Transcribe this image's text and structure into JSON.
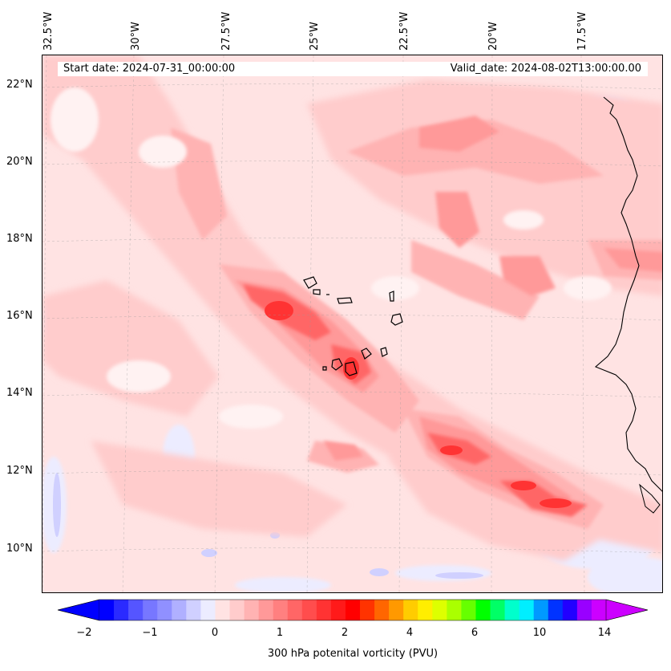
{
  "map": {
    "title_left": "Start date: 2024-07-31_00:00:00",
    "title_right": "Valid_date: 2024-08-02T13:00:00.00",
    "lon_labels": [
      "32.5°W",
      "30°W",
      "27.5°W",
      "25°W",
      "22.5°W",
      "20°W",
      "17.5°W"
    ],
    "lat_labels": [
      "22°N",
      "20°N",
      "18°N",
      "16°N",
      "14°N",
      "12°N",
      "10°N"
    ],
    "variable": "300 hPa potential vorticity",
    "units": "PVU"
  },
  "colorbar": {
    "label": "300 hPa potenital vorticity (PVU)",
    "tick_labels": [
      "−2",
      "−1",
      "0",
      "1",
      "2",
      "4",
      "6",
      "10",
      "14"
    ],
    "colors": [
      "#0000ff",
      "#2a2aff",
      "#5555ff",
      "#7777ff",
      "#9090ff",
      "#b0b0ff",
      "#d0d0ff",
      "#ececff",
      "#ffe3e3",
      "#ffcccc",
      "#ffb3b3",
      "#ff9999",
      "#ff8080",
      "#ff6666",
      "#ff4d4d",
      "#ff3333",
      "#ff1a1a",
      "#ff0000",
      "#ff3300",
      "#ff6600",
      "#ff9900",
      "#ffcc00",
      "#ffee00",
      "#ddff00",
      "#aaff00",
      "#66ff00",
      "#00ff00",
      "#00ff66",
      "#00ffcc",
      "#00eeff",
      "#0099ff",
      "#0033ff",
      "#2200ff",
      "#9900ff",
      "#cc00ff"
    ],
    "under_color": "#0000ff",
    "over_color": "#cc00ff"
  }
}
